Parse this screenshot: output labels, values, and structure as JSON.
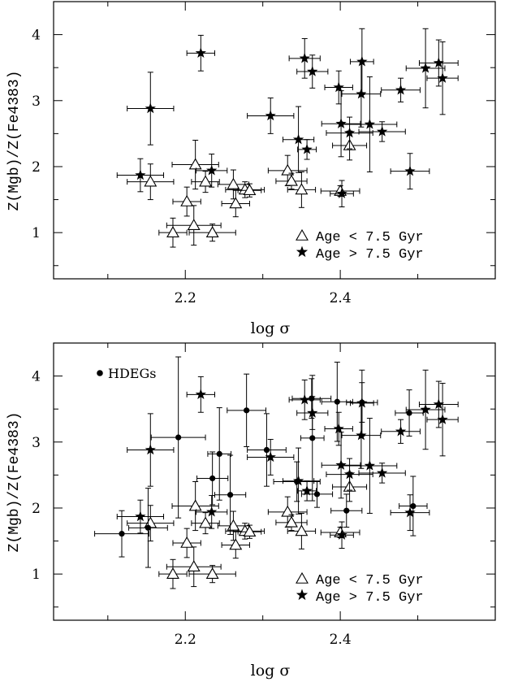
{
  "chart_data": [
    {
      "type": "scatter",
      "xlabel": "log σ",
      "ylabel": "Z(Mgb)/Z(Fe4383)",
      "xlim": [
        2.03,
        2.6
      ],
      "ylim": [
        0.3,
        4.5
      ],
      "xticks_major": [
        2.2,
        2.4
      ],
      "xticks_minor": [
        2.1,
        2.3,
        2.5
      ],
      "yticks": [
        1,
        2,
        3,
        4
      ],
      "grid": false,
      "legend": {
        "placement": "bottom-right",
        "items": [
          {
            "marker": "open-triangle",
            "label": "Age < 7.5 Gyr"
          },
          {
            "marker": "filled-star",
            "label": "Age > 7.5 Gyr"
          }
        ]
      },
      "series": [
        {
          "name": "Age < 7.5 Gyr",
          "marker": "open-triangle",
          "points": [
            {
              "x": 2.155,
              "y": 1.77,
              "xerr": 0.03,
              "yerr": 0.27
            },
            {
              "x": 2.184,
              "y": 1.0,
              "xerr": 0.018,
              "yerr": 0.22
            },
            {
              "x": 2.202,
              "y": 1.47,
              "xerr": 0.018,
              "yerr": 0.22
            },
            {
              "x": 2.211,
              "y": 1.11,
              "xerr": 0.035,
              "yerr": 0.3
            },
            {
              "x": 2.213,
              "y": 2.03,
              "xerr": 0.03,
              "yerr": 0.37
            },
            {
              "x": 2.226,
              "y": 1.77,
              "xerr": 0.018,
              "yerr": 0.16
            },
            {
              "x": 2.235,
              "y": 1.0,
              "xerr": 0.03,
              "yerr": 0.13
            },
            {
              "x": 2.262,
              "y": 1.73,
              "xerr": 0.02,
              "yerr": 0.22
            },
            {
              "x": 2.265,
              "y": 1.44,
              "xerr": 0.018,
              "yerr": 0.2
            },
            {
              "x": 2.277,
              "y": 1.65,
              "xerr": 0.025,
              "yerr": 0.12
            },
            {
              "x": 2.283,
              "y": 1.64,
              "xerr": 0.015,
              "yerr": 0.1
            },
            {
              "x": 2.332,
              "y": 1.94,
              "xerr": 0.025,
              "yerr": 0.23
            },
            {
              "x": 2.337,
              "y": 1.78,
              "xerr": 0.02,
              "yerr": 0.12
            },
            {
              "x": 2.35,
              "y": 1.65,
              "xerr": 0.018,
              "yerr": 0.27
            },
            {
              "x": 2.4,
              "y": 1.63,
              "xerr": 0.025,
              "yerr": 0.08
            },
            {
              "x": 2.412,
              "y": 2.32,
              "xerr": 0.022,
              "yerr": 0.22
            }
          ]
        },
        {
          "name": "Age > 7.5 Gyr",
          "marker": "filled-star",
          "points": [
            {
              "x": 2.142,
              "y": 1.87,
              "xerr": 0.03,
              "yerr": 0.25
            },
            {
              "x": 2.155,
              "y": 2.88,
              "xerr": 0.03,
              "yerr": 0.55
            },
            {
              "x": 2.22,
              "y": 3.72,
              "xerr": 0.018,
              "yerr": 0.27
            },
            {
              "x": 2.234,
              "y": 1.94,
              "xerr": 0.02,
              "yerr": 0.25
            },
            {
              "x": 2.31,
              "y": 2.77,
              "xerr": 0.03,
              "yerr": 0.27
            },
            {
              "x": 2.346,
              "y": 2.41,
              "xerr": 0.02,
              "yerr": 0.5
            },
            {
              "x": 2.354,
              "y": 3.64,
              "xerr": 0.02,
              "yerr": 0.3
            },
            {
              "x": 2.357,
              "y": 2.26,
              "xerr": 0.012,
              "yerr": 0.15
            },
            {
              "x": 2.364,
              "y": 3.44,
              "xerr": 0.02,
              "yerr": 0.25
            },
            {
              "x": 2.398,
              "y": 3.2,
              "xerr": 0.018,
              "yerr": 0.25
            },
            {
              "x": 2.401,
              "y": 2.65,
              "xerr": 0.025,
              "yerr": 0.5
            },
            {
              "x": 2.402,
              "y": 1.59,
              "xerr": 0.015,
              "yerr": 0.2
            },
            {
              "x": 2.412,
              "y": 2.51,
              "xerr": 0.03,
              "yerr": 0.24
            },
            {
              "x": 2.427,
              "y": 3.1,
              "xerr": 0.025,
              "yerr": 0.5
            },
            {
              "x": 2.428,
              "y": 3.59,
              "xerr": 0.015,
              "yerr": 0.5
            },
            {
              "x": 2.438,
              "y": 2.64,
              "xerr": 0.035,
              "yerr": 0.72
            },
            {
              "x": 2.454,
              "y": 2.53,
              "xerr": 0.03,
              "yerr": 0.15
            },
            {
              "x": 2.478,
              "y": 3.16,
              "xerr": 0.025,
              "yerr": 0.18
            },
            {
              "x": 2.49,
              "y": 1.93,
              "xerr": 0.025,
              "yerr": 0.27
            },
            {
              "x": 2.51,
              "y": 3.49,
              "xerr": 0.025,
              "yerr": 0.6
            },
            {
              "x": 2.527,
              "y": 3.57,
              "xerr": 0.025,
              "yerr": 0.35
            },
            {
              "x": 2.532,
              "y": 3.34,
              "xerr": 0.02,
              "yerr": 0.55
            }
          ]
        }
      ]
    },
    {
      "type": "scatter",
      "xlabel": "log σ",
      "ylabel": "Z(Mgb)/Z(Fe4383)",
      "xlim": [
        2.03,
        2.6
      ],
      "ylim": [
        0.3,
        4.5
      ],
      "xticks_major": [
        2.2,
        2.4
      ],
      "xticks_minor": [
        2.1,
        2.3,
        2.5
      ],
      "yticks": [
        1,
        2,
        3,
        4
      ],
      "grid": false,
      "annotation": "HDEGs",
      "legend": {
        "placement": "bottom-right",
        "items": [
          {
            "marker": "open-triangle",
            "label": "Age < 7.5 Gyr"
          },
          {
            "marker": "filled-star",
            "label": "Age > 7.5 Gyr"
          }
        ]
      },
      "series": [
        {
          "name": "Age < 7.5 Gyr",
          "marker": "open-triangle",
          "points": [
            {
              "x": 2.155,
              "y": 1.77,
              "xerr": 0.03,
              "yerr": 0.27
            },
            {
              "x": 2.184,
              "y": 1.0,
              "xerr": 0.018,
              "yerr": 0.22
            },
            {
              "x": 2.202,
              "y": 1.47,
              "xerr": 0.018,
              "yerr": 0.22
            },
            {
              "x": 2.211,
              "y": 1.11,
              "xerr": 0.035,
              "yerr": 0.3
            },
            {
              "x": 2.213,
              "y": 2.03,
              "xerr": 0.03,
              "yerr": 0.37
            },
            {
              "x": 2.226,
              "y": 1.77,
              "xerr": 0.018,
              "yerr": 0.16
            },
            {
              "x": 2.235,
              "y": 1.0,
              "xerr": 0.03,
              "yerr": 0.13
            },
            {
              "x": 2.262,
              "y": 1.73,
              "xerr": 0.02,
              "yerr": 0.22
            },
            {
              "x": 2.265,
              "y": 1.44,
              "xerr": 0.018,
              "yerr": 0.2
            },
            {
              "x": 2.277,
              "y": 1.65,
              "xerr": 0.025,
              "yerr": 0.12
            },
            {
              "x": 2.283,
              "y": 1.64,
              "xerr": 0.015,
              "yerr": 0.1
            },
            {
              "x": 2.332,
              "y": 1.94,
              "xerr": 0.025,
              "yerr": 0.23
            },
            {
              "x": 2.337,
              "y": 1.78,
              "xerr": 0.02,
              "yerr": 0.12
            },
            {
              "x": 2.35,
              "y": 1.65,
              "xerr": 0.018,
              "yerr": 0.27
            },
            {
              "x": 2.4,
              "y": 1.63,
              "xerr": 0.025,
              "yerr": 0.08
            },
            {
              "x": 2.412,
              "y": 2.32,
              "xerr": 0.022,
              "yerr": 0.22
            }
          ]
        },
        {
          "name": "Age > 7.5 Gyr",
          "marker": "filled-star",
          "points": [
            {
              "x": 2.142,
              "y": 1.87,
              "xerr": 0.03,
              "yerr": 0.25
            },
            {
              "x": 2.155,
              "y": 2.88,
              "xerr": 0.03,
              "yerr": 0.55
            },
            {
              "x": 2.22,
              "y": 3.72,
              "xerr": 0.018,
              "yerr": 0.27
            },
            {
              "x": 2.234,
              "y": 1.94,
              "xerr": 0.02,
              "yerr": 0.25
            },
            {
              "x": 2.31,
              "y": 2.77,
              "xerr": 0.03,
              "yerr": 0.27
            },
            {
              "x": 2.346,
              "y": 2.41,
              "xerr": 0.02,
              "yerr": 0.5
            },
            {
              "x": 2.354,
              "y": 3.64,
              "xerr": 0.02,
              "yerr": 0.3
            },
            {
              "x": 2.357,
              "y": 2.26,
              "xerr": 0.012,
              "yerr": 0.15
            },
            {
              "x": 2.364,
              "y": 3.44,
              "xerr": 0.02,
              "yerr": 0.25
            },
            {
              "x": 2.398,
              "y": 3.2,
              "xerr": 0.018,
              "yerr": 0.25
            },
            {
              "x": 2.401,
              "y": 2.65,
              "xerr": 0.025,
              "yerr": 0.5
            },
            {
              "x": 2.402,
              "y": 1.59,
              "xerr": 0.015,
              "yerr": 0.2
            },
            {
              "x": 2.412,
              "y": 2.51,
              "xerr": 0.03,
              "yerr": 0.24
            },
            {
              "x": 2.427,
              "y": 3.1,
              "xerr": 0.025,
              "yerr": 0.5
            },
            {
              "x": 2.428,
              "y": 3.59,
              "xerr": 0.015,
              "yerr": 0.5
            },
            {
              "x": 2.438,
              "y": 2.64,
              "xerr": 0.035,
              "yerr": 0.72
            },
            {
              "x": 2.454,
              "y": 2.53,
              "xerr": 0.03,
              "yerr": 0.15
            },
            {
              "x": 2.478,
              "y": 3.16,
              "xerr": 0.025,
              "yerr": 0.18
            },
            {
              "x": 2.49,
              "y": 1.93,
              "xerr": 0.025,
              "yerr": 0.27
            },
            {
              "x": 2.51,
              "y": 3.49,
              "xerr": 0.025,
              "yerr": 0.6
            },
            {
              "x": 2.527,
              "y": 3.57,
              "xerr": 0.025,
              "yerr": 0.35
            },
            {
              "x": 2.532,
              "y": 3.34,
              "xerr": 0.02,
              "yerr": 0.55
            }
          ]
        },
        {
          "name": "HDEGs",
          "marker": "filled-circle",
          "points": [
            {
              "x": 2.118,
              "y": 1.61,
              "xerr": 0.035,
              "yerr": 0.35
            },
            {
              "x": 2.152,
              "y": 1.7,
              "xerr": 0.025,
              "yerr": 0.6
            },
            {
              "x": 2.191,
              "y": 3.07,
              "xerr": 0.035,
              "yerr": 1.22
            },
            {
              "x": 2.235,
              "y": 2.45,
              "xerr": 0.02,
              "yerr": 0.4
            },
            {
              "x": 2.244,
              "y": 2.82,
              "xerr": 0.015,
              "yerr": 0.7
            },
            {
              "x": 2.258,
              "y": 2.2,
              "xerr": 0.02,
              "yerr": 0.6
            },
            {
              "x": 2.279,
              "y": 3.48,
              "xerr": 0.025,
              "yerr": 0.55
            },
            {
              "x": 2.305,
              "y": 2.88,
              "xerr": 0.025,
              "yerr": 0.55
            },
            {
              "x": 2.344,
              "y": 2.4,
              "xerr": 0.03,
              "yerr": 0.3
            },
            {
              "x": 2.363,
              "y": 3.66,
              "xerr": 0.025,
              "yerr": 0.3
            },
            {
              "x": 2.364,
              "y": 3.06,
              "xerr": 0.015,
              "yerr": 0.95
            },
            {
              "x": 2.37,
              "y": 2.21,
              "xerr": 0.02,
              "yerr": 0.2
            },
            {
              "x": 2.396,
              "y": 3.61,
              "xerr": 0.02,
              "yerr": 0.6
            },
            {
              "x": 2.408,
              "y": 1.96,
              "xerr": 0.02,
              "yerr": 0.25
            },
            {
              "x": 2.428,
              "y": 3.6,
              "xerr": 0.02,
              "yerr": 0.3
            },
            {
              "x": 2.489,
              "y": 3.44,
              "xerr": 0.018,
              "yerr": 0.35
            },
            {
              "x": 2.494,
              "y": 2.03,
              "xerr": 0.018,
              "yerr": 0.45
            }
          ]
        }
      ]
    }
  ]
}
